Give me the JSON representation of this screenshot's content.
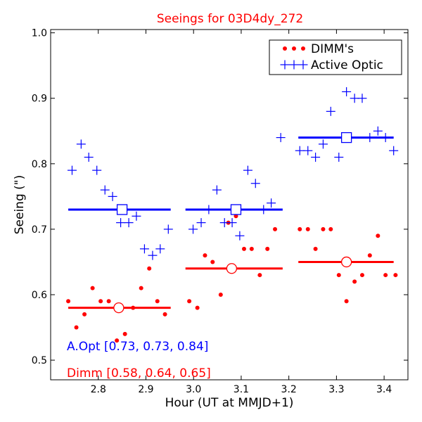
{
  "chart_data": {
    "type": "scatter",
    "title": "Seeings for 03D4dy_272",
    "xlabel": "Hour (UT at MMJD+1)",
    "ylabel": "Seeing (\")",
    "xlim": [
      2.7,
      3.45
    ],
    "ylim": [
      0.47,
      1.005
    ],
    "x_ticks": [
      2.8,
      2.9,
      3.0,
      3.1,
      3.2,
      3.3,
      3.4
    ],
    "x_tick_labels": [
      "2.8",
      "2.9",
      "3.0",
      "3.1",
      "3.2",
      "3.3",
      "3.4"
    ],
    "y_ticks": [
      0.5,
      0.6,
      0.7,
      0.8,
      0.9,
      1.0
    ],
    "y_tick_labels": [
      "0.5",
      "0.6",
      "0.7",
      "0.8",
      "0.9",
      "1.0"
    ],
    "grid": false,
    "legend_position": "top-right",
    "series": [
      {
        "name": "DIMM's",
        "color": "#ff0000",
        "marker": "dot",
        "points": [
          [
            2.737,
            0.59
          ],
          [
            2.754,
            0.55
          ],
          [
            2.771,
            0.57
          ],
          [
            2.788,
            0.61
          ],
          [
            2.805,
            0.59
          ],
          [
            2.822,
            0.59
          ],
          [
            2.839,
            0.53
          ],
          [
            2.856,
            0.54
          ],
          [
            2.873,
            0.58
          ],
          [
            2.89,
            0.61
          ],
          [
            2.907,
            0.64
          ],
          [
            2.924,
            0.59
          ],
          [
            2.94,
            0.57
          ],
          [
            2.991,
            0.59
          ],
          [
            3.008,
            0.58
          ],
          [
            3.024,
            0.66
          ],
          [
            3.04,
            0.65
          ],
          [
            3.057,
            0.6
          ],
          [
            3.073,
            0.71
          ],
          [
            3.089,
            0.72
          ],
          [
            3.106,
            0.67
          ],
          [
            3.122,
            0.67
          ],
          [
            3.139,
            0.63
          ],
          [
            3.155,
            0.67
          ],
          [
            3.171,
            0.7
          ],
          [
            3.223,
            0.7
          ],
          [
            3.24,
            0.7
          ],
          [
            3.256,
            0.67
          ],
          [
            3.272,
            0.7
          ],
          [
            3.288,
            0.7
          ],
          [
            3.305,
            0.63
          ],
          [
            3.321,
            0.59
          ],
          [
            3.338,
            0.62
          ],
          [
            3.354,
            0.63
          ],
          [
            3.37,
            0.66
          ],
          [
            3.387,
            0.69
          ],
          [
            3.403,
            0.63
          ],
          [
            3.424,
            0.63
          ]
        ]
      },
      {
        "name": "Active Optic",
        "color": "#0000ff",
        "marker": "plus",
        "points": [
          [
            2.745,
            0.79
          ],
          [
            2.764,
            0.83
          ],
          [
            2.78,
            0.81
          ],
          [
            2.797,
            0.79
          ],
          [
            2.814,
            0.76
          ],
          [
            2.83,
            0.75
          ],
          [
            2.847,
            0.71
          ],
          [
            2.864,
            0.71
          ],
          [
            2.88,
            0.72
          ],
          [
            2.897,
            0.67
          ],
          [
            2.914,
            0.66
          ],
          [
            2.93,
            0.67
          ],
          [
            2.947,
            0.7
          ],
          [
            2.999,
            0.7
          ],
          [
            3.016,
            0.71
          ],
          [
            3.032,
            0.73
          ],
          [
            3.049,
            0.76
          ],
          [
            3.065,
            0.71
          ],
          [
            3.081,
            0.71
          ],
          [
            3.097,
            0.69
          ],
          [
            3.097,
            0.73
          ],
          [
            3.114,
            0.79
          ],
          [
            3.13,
            0.77
          ],
          [
            3.147,
            0.73
          ],
          [
            3.163,
            0.74
          ],
          [
            3.183,
            0.84
          ],
          [
            3.223,
            0.82
          ],
          [
            3.24,
            0.82
          ],
          [
            3.256,
            0.81
          ],
          [
            3.272,
            0.83
          ],
          [
            3.288,
            0.88
          ],
          [
            3.305,
            0.81
          ],
          [
            3.321,
            0.91
          ],
          [
            3.338,
            0.9
          ],
          [
            3.354,
            0.9
          ],
          [
            3.37,
            0.84
          ],
          [
            3.387,
            0.85
          ],
          [
            3.403,
            0.84
          ],
          [
            3.42,
            0.82
          ]
        ]
      }
    ],
    "segments": [
      {
        "series": "Active Optic",
        "x": [
          2.737,
          2.952
        ],
        "y": 0.73,
        "center_x": 2.85
      },
      {
        "series": "Active Optic",
        "x": [
          2.983,
          3.187
        ],
        "y": 0.73,
        "center_x": 3.089
      },
      {
        "series": "Active Optic",
        "x": [
          3.22,
          3.42
        ],
        "y": 0.84,
        "center_x": 3.321
      },
      {
        "series": "DIMM's",
        "x": [
          2.737,
          2.952
        ],
        "y": 0.58,
        "center_x": 2.843
      },
      {
        "series": "DIMM's",
        "x": [
          2.983,
          3.187
        ],
        "y": 0.64,
        "center_x": 3.08
      },
      {
        "series": "DIMM's",
        "x": [
          3.22,
          3.42
        ],
        "y": 0.65,
        "center_x": 3.321
      }
    ],
    "annotations": [
      {
        "text": "A.Opt [0.73, 0.73, 0.84]",
        "color": "#0000ff"
      },
      {
        "text": "Dimm [0.58, 0.64, 0.65]",
        "color": "#ff0000"
      }
    ]
  }
}
